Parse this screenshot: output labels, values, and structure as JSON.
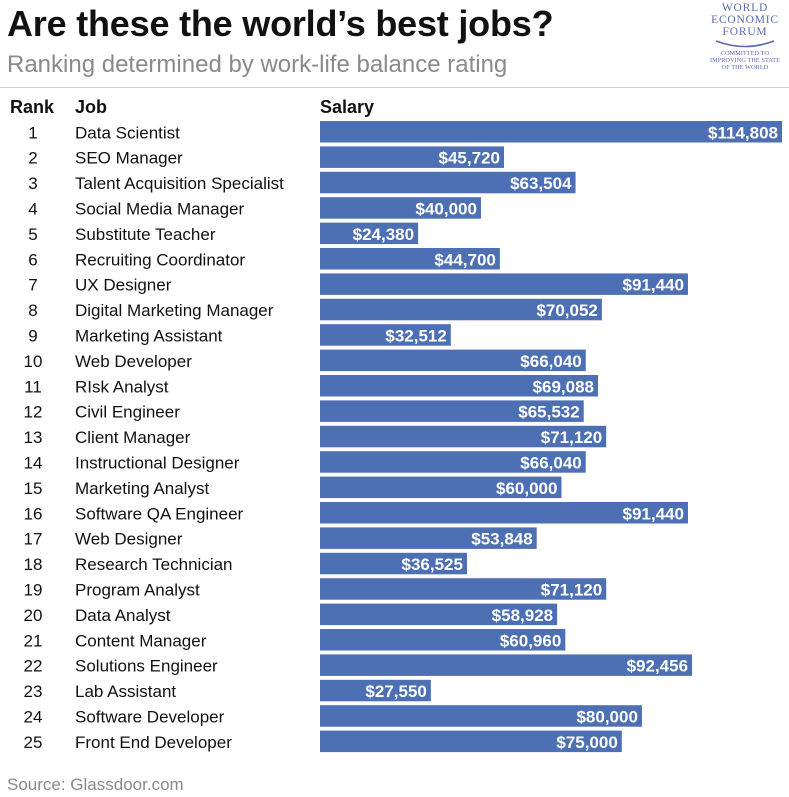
{
  "header": {
    "title": "Are these the world’s best jobs?",
    "subtitle": "Ranking determined by work-life balance rating"
  },
  "logo": {
    "line1": "WORLD",
    "line2": "ECONOMIC",
    "line3": "FORUM",
    "tagline1": "COMMITTED TO",
    "tagline2": "IMPROVING THE STATE",
    "tagline3": "OF THE WORLD"
  },
  "columns": {
    "rank": "Rank",
    "job": "Job",
    "salary": "Salary"
  },
  "source": "Source: Glassdoor.com",
  "colors": {
    "bar": "#4d6fb3",
    "bar_text": "#ffffff",
    "logo": "#5a6bb0"
  },
  "chart_data": {
    "type": "bar",
    "orientation": "horizontal",
    "title": "Are these the world’s best jobs?",
    "subtitle": "Ranking determined by work-life balance rating",
    "xlabel": "Salary",
    "ylabel": "Job",
    "xlim": [
      0,
      114808
    ],
    "currency": "USD",
    "ranks": [
      1,
      2,
      3,
      4,
      5,
      6,
      7,
      8,
      9,
      10,
      11,
      12,
      13,
      14,
      15,
      16,
      17,
      18,
      19,
      20,
      21,
      22,
      23,
      24,
      25
    ],
    "categories": [
      "Data Scientist",
      "SEO Manager",
      "Talent Acquisition Specialist",
      "Social Media Manager",
      "Substitute Teacher",
      "Recruiting Coordinator",
      "UX Designer",
      "Digital Marketing Manager",
      "Marketing Assistant",
      "Web Developer",
      "RIsk Analyst",
      "Civil Engineer",
      "Client Manager",
      "Instructional Designer",
      "Marketing Analyst",
      "Software QA Engineer",
      "Web Designer",
      "Research Technician",
      "Program Analyst",
      "Data Analyst",
      "Content Manager",
      "Solutions Engineer",
      "Lab Assistant",
      "Software Developer",
      "Front End Developer"
    ],
    "values": [
      114808,
      45720,
      63504,
      40000,
      24380,
      44700,
      91440,
      70052,
      32512,
      66040,
      69088,
      65532,
      71120,
      66040,
      60000,
      91440,
      53848,
      36525,
      71120,
      58928,
      60960,
      92456,
      27550,
      80000,
      75000
    ],
    "labels": [
      "$114,808",
      "$45,720",
      "$63,504",
      "$40,000",
      "$24,380",
      "$44,700",
      "$91,440",
      "$70,052",
      "$32,512",
      "$66,040",
      "$69,088",
      "$65,532",
      "$71,120",
      "$66,040",
      "$60,000",
      "$91,440",
      "$53,848",
      "$36,525",
      "$71,120",
      "$58,928",
      "$60,960",
      "$92,456",
      "$27,550",
      "$80,000",
      "$75,000"
    ]
  }
}
